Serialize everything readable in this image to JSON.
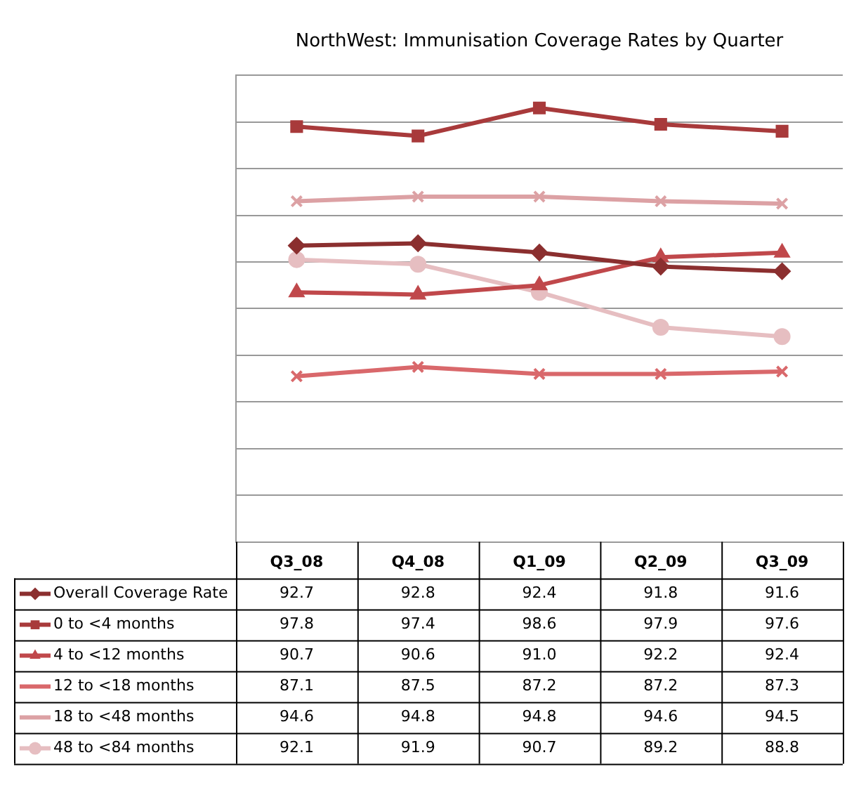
{
  "chart_data": {
    "type": "line",
    "title": "NorthWest: Immunisation Coverage Rates by Quarter",
    "categories": [
      "Q3_08",
      "Q4_08",
      "Q1_09",
      "Q2_09",
      "Q3_09"
    ],
    "series": [
      {
        "name": "Overall Coverage Rate",
        "color": "#8b2f2f",
        "marker": "diamond",
        "values": [
          92.7,
          92.8,
          92.4,
          91.8,
          91.6
        ],
        "value_labels": [
          "92.7",
          "92.8",
          "92.4",
          "91.8",
          "91.6"
        ]
      },
      {
        "name": "0 to <4 months",
        "color": "#a83a3b",
        "marker": "square",
        "values": [
          97.8,
          97.4,
          98.6,
          97.9,
          97.6
        ],
        "value_labels": [
          "97.8",
          "97.4",
          "98.6",
          "97.9",
          "97.6"
        ]
      },
      {
        "name": "4 to <12 months",
        "color": "#c0484b",
        "marker": "triangle",
        "values": [
          90.7,
          90.6,
          91.0,
          92.2,
          92.4
        ],
        "value_labels": [
          "90.7",
          "90.6",
          "91.0",
          "92.2",
          "92.4"
        ]
      },
      {
        "name": "12 to <18 months",
        "color": "#d9686b",
        "marker": "cross",
        "values": [
          87.1,
          87.5,
          87.2,
          87.2,
          87.3
        ],
        "value_labels": [
          "87.1",
          "87.5",
          "87.2",
          "87.2",
          "87.3"
        ]
      },
      {
        "name": "18 to <48 months",
        "color": "#dca1a4",
        "marker": "cross",
        "values": [
          94.6,
          94.8,
          94.8,
          94.6,
          94.5
        ],
        "value_labels": [
          "94.6",
          "94.8",
          "94.8",
          "94.6",
          "94.5"
        ]
      },
      {
        "name": "48 to <84 months",
        "color": "#e6bec1",
        "marker": "circle",
        "values": [
          92.1,
          91.9,
          90.7,
          89.2,
          88.8
        ],
        "value_labels": [
          "92.1",
          "91.9",
          "90.7",
          "89.2",
          "88.8"
        ]
      }
    ],
    "ylim": [
      80,
      100
    ],
    "yticks": [
      {
        "value": 80,
        "label": null
      },
      {
        "value": 82,
        "label": null
      },
      {
        "value": 84,
        "label": null
      },
      {
        "value": 86,
        "label": null
      },
      {
        "value": 88,
        "label": null
      },
      {
        "value": 90,
        "label": null
      },
      {
        "value": 92,
        "label": null
      },
      {
        "value": 94,
        "label": null
      },
      {
        "value": 96,
        "label": null
      },
      {
        "value": 98,
        "label": null
      },
      {
        "value": 100,
        "label": null
      }
    ],
    "tick_labels": "x",
    "grid": "y",
    "legend": "bottom",
    "line_style": "solid"
  }
}
